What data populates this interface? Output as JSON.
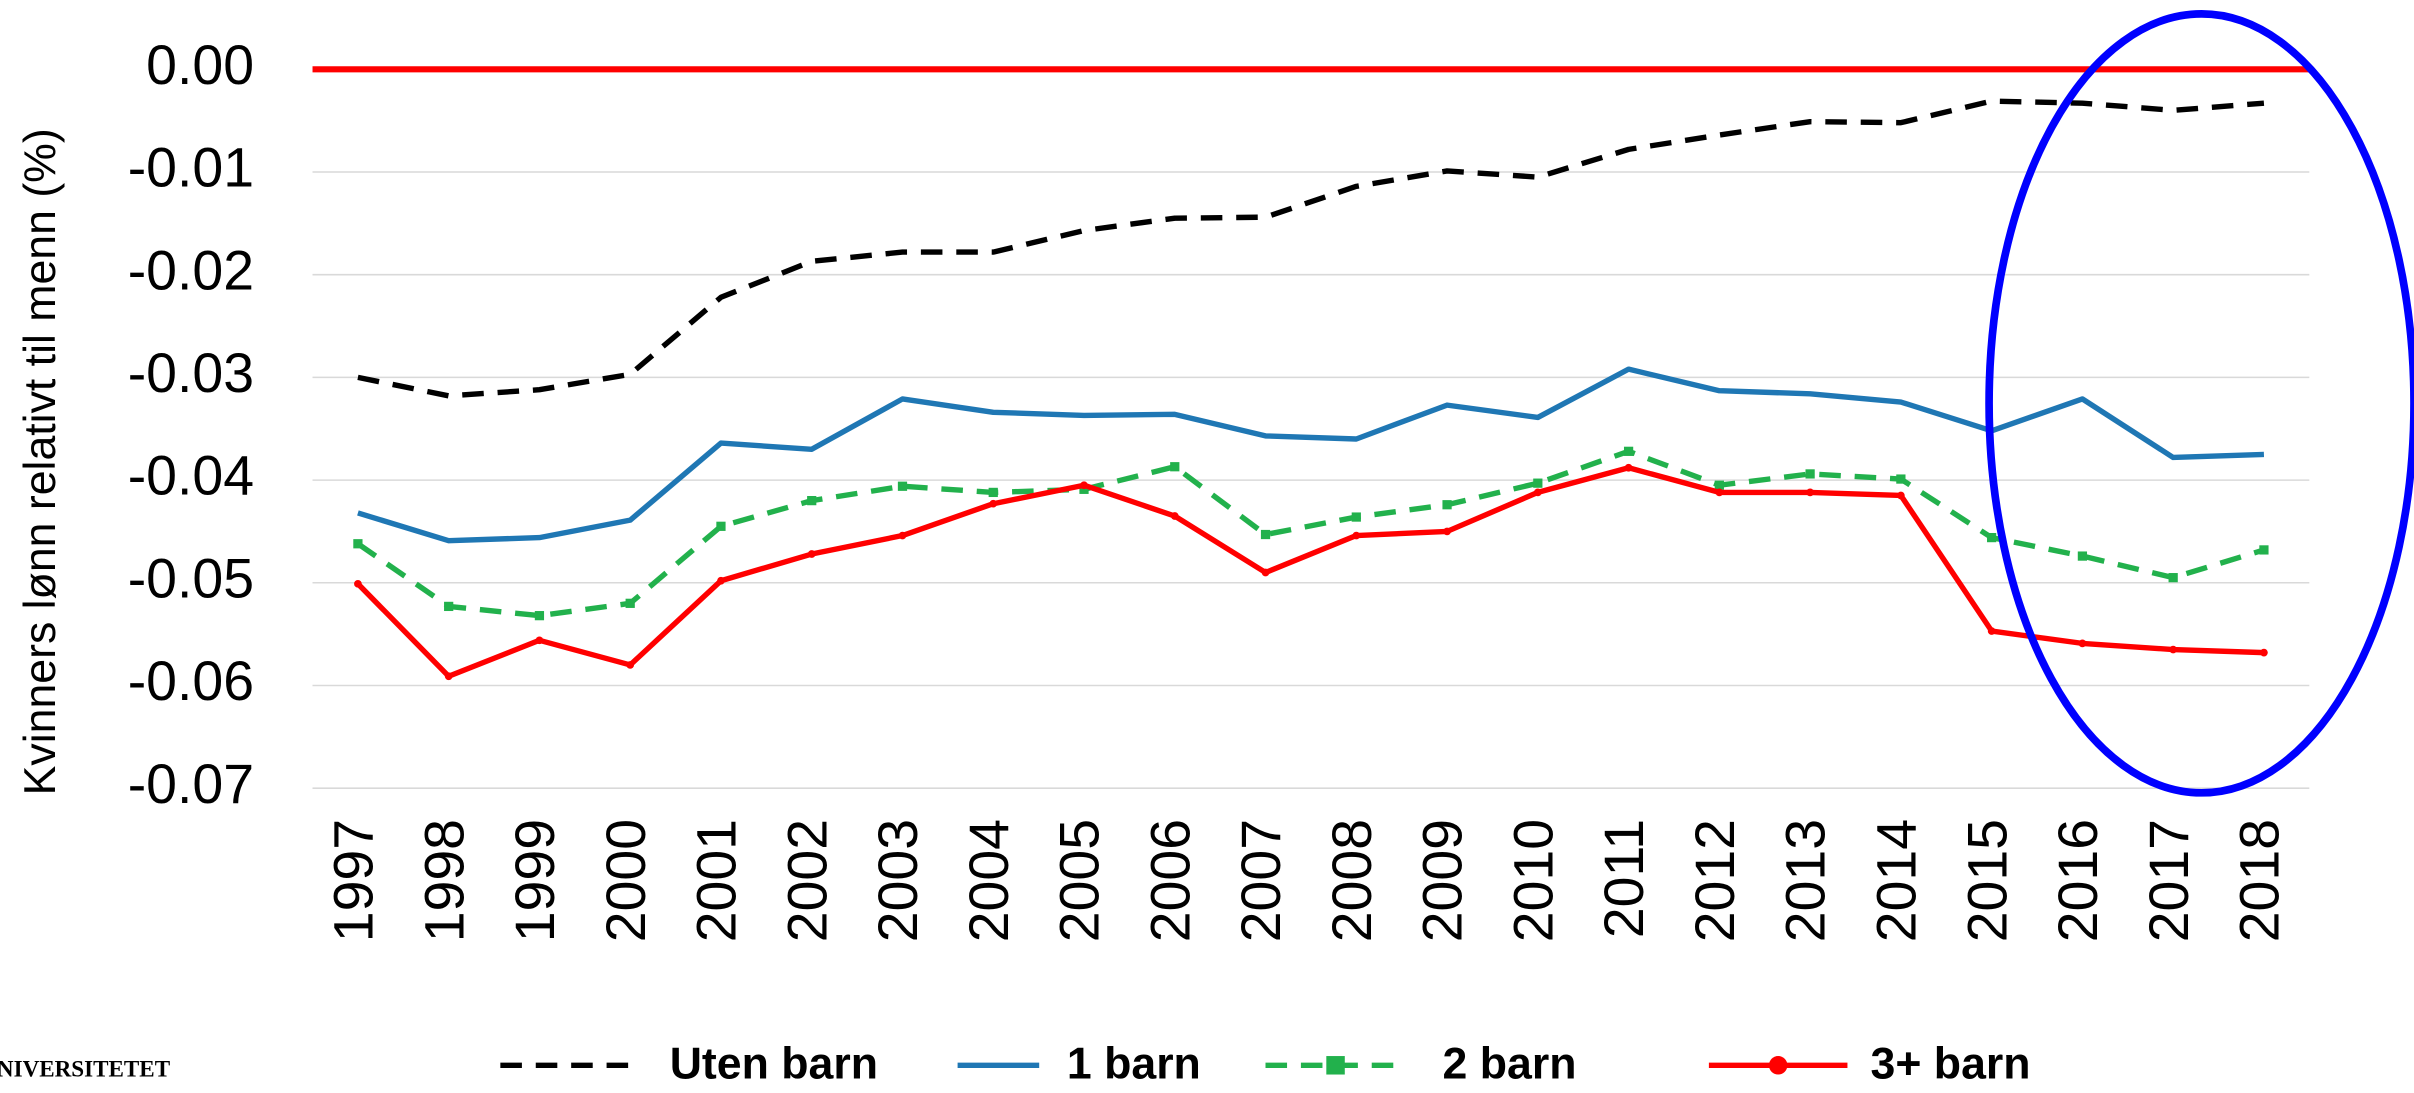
{
  "chart_data": {
    "type": "line",
    "y_label": "Kvinners lønn relativt til menn (%)",
    "logo_text": "NIVERSITETET",
    "categories": [
      "1997",
      "1998",
      "1999",
      "2000",
      "2001",
      "2002",
      "2003",
      "2004",
      "2005",
      "2006",
      "2007",
      "2008",
      "2009",
      "2010",
      "2011",
      "2012",
      "2013",
      "2014",
      "2015",
      "2016",
      "2017",
      "2018"
    ],
    "ylim": [
      -0.07,
      0
    ],
    "yticks": [
      {
        "value": 0,
        "label": "0.00"
      },
      {
        "value": -0.01,
        "label": "-0.01"
      },
      {
        "value": -0.02,
        "label": "-0.02"
      },
      {
        "value": -0.03,
        "label": "-0.03"
      },
      {
        "value": -0.04,
        "label": "-0.04"
      },
      {
        "value": -0.05,
        "label": "-0.05"
      },
      {
        "value": -0.06,
        "label": "-0.06"
      },
      {
        "value": -0.07,
        "label": "-0.07"
      }
    ],
    "grid": true,
    "zero_line": {
      "value": 0,
      "color": "#ff0000"
    },
    "series": [
      {
        "name": "Uten barn",
        "color": "#000000",
        "dash": "dashed",
        "marker": "none",
        "values": [
          -0.03,
          -0.0318,
          -0.0312,
          -0.0297,
          -0.0222,
          -0.0187,
          -0.0178,
          -0.0178,
          -0.0157,
          -0.0145,
          -0.0144,
          -0.0114,
          -0.0099,
          -0.0105,
          -0.0078,
          -0.0064,
          -0.0051,
          -0.0052,
          -0.0031,
          -0.0033,
          -0.004,
          -0.0033
        ]
      },
      {
        "name": "1 barn",
        "color": "#1f77b4",
        "dash": "solid",
        "marker": "none",
        "values": [
          -0.0432,
          -0.0459,
          -0.0456,
          -0.0439,
          -0.0364,
          -0.037,
          -0.0321,
          -0.0334,
          -0.0337,
          -0.0336,
          -0.0357,
          -0.036,
          -0.0327,
          -0.0339,
          -0.0292,
          -0.0313,
          -0.0316,
          -0.0324,
          -0.0352,
          -0.0321,
          -0.0378,
          -0.0375
        ]
      },
      {
        "name": "2 barn",
        "color": "#22b14c",
        "dash": "dashed",
        "marker": "square",
        "values": [
          -0.0462,
          -0.0523,
          -0.0532,
          -0.052,
          -0.0445,
          -0.042,
          -0.0406,
          -0.0412,
          -0.0409,
          -0.0387,
          -0.0453,
          -0.0436,
          -0.0424,
          -0.0403,
          -0.0372,
          -0.0405,
          -0.0394,
          -0.0399,
          -0.0456,
          -0.0474,
          -0.0495,
          -0.0468
        ]
      },
      {
        "name": "3+ barn",
        "color": "#ff0000",
        "dash": "solid",
        "marker": "circle",
        "values": [
          -0.0501,
          -0.0591,
          -0.0556,
          -0.058,
          -0.0498,
          -0.0472,
          -0.0454,
          -0.0423,
          -0.0405,
          -0.0435,
          -0.049,
          -0.0454,
          -0.045,
          -0.0412,
          -0.0388,
          -0.0412,
          -0.0412,
          -0.0415,
          -0.0547,
          -0.0559,
          -0.0565,
          -0.0568
        ]
      }
    ]
  }
}
